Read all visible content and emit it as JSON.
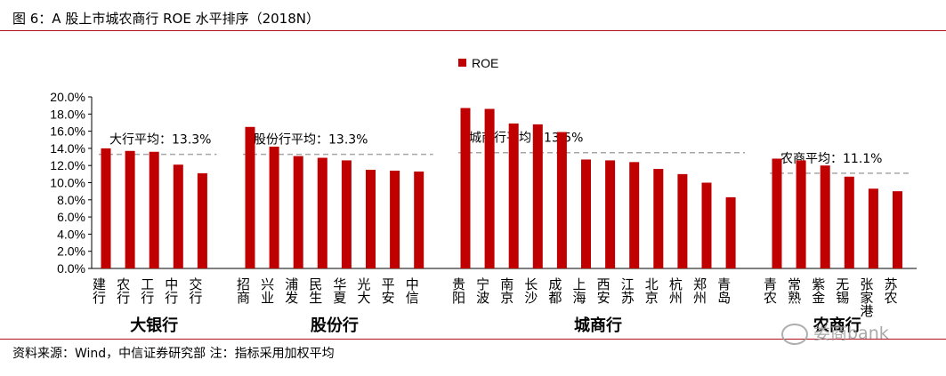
{
  "header": {
    "title": "图 6：A 股上市城农商行 ROE 水平排序（2018N）"
  },
  "footer": {
    "source": "资料来源：Wind，中信证券研究部    注：指标采用加权平均"
  },
  "watermark": {
    "text": "娄商bank"
  },
  "colors": {
    "bar": "#c00000",
    "avg_line": "#a6a6a6",
    "rule": "#b01020"
  },
  "chart_data": {
    "type": "bar",
    "title": "",
    "xlabel": "",
    "ylabel": "",
    "ylim": [
      0,
      20
    ],
    "yticks": [
      "0.0%",
      "2.0%",
      "4.0%",
      "6.0%",
      "8.0%",
      "10.0%",
      "12.0%",
      "14.0%",
      "16.0%",
      "18.0%",
      "20.0%"
    ],
    "legend": {
      "label": "ROE",
      "position": "top-center"
    },
    "grid": false,
    "groups": [
      {
        "name": "大银行",
        "categories": [
          "建行",
          "农行",
          "工行",
          "中行",
          "交行"
        ],
        "values": [
          14.0,
          13.7,
          13.6,
          12.1,
          11.1
        ],
        "average": 13.3,
        "average_label": "大行平均：13.3%"
      },
      {
        "name": "股份行",
        "categories": [
          "招商",
          "兴业",
          "浦发",
          "民生",
          "华夏",
          "光大",
          "平安",
          "中信"
        ],
        "values": [
          16.5,
          14.2,
          13.1,
          12.9,
          12.6,
          11.5,
          11.4,
          11.3
        ],
        "average": 13.3,
        "average_label": "股份行平均：13.3%"
      },
      {
        "name": "城商行",
        "categories": [
          "贵阳",
          "宁波",
          "南京",
          "长沙",
          "成都",
          "上海",
          "西安",
          "江苏",
          "北京",
          "杭州",
          "郑州",
          "青岛"
        ],
        "values": [
          18.7,
          18.6,
          16.9,
          16.8,
          15.9,
          12.7,
          12.6,
          12.4,
          11.6,
          11.0,
          10.0,
          8.3
        ],
        "average": 13.5,
        "average_label": "城商行平均：13.5%"
      },
      {
        "name": "农商行",
        "categories": [
          "青农",
          "常熟",
          "紫金",
          "无锡",
          "张家港",
          "苏农"
        ],
        "values": [
          12.8,
          12.6,
          12.0,
          10.7,
          9.3,
          9.0
        ],
        "average": 11.1,
        "average_label": "农商平均：11.1%"
      }
    ]
  }
}
